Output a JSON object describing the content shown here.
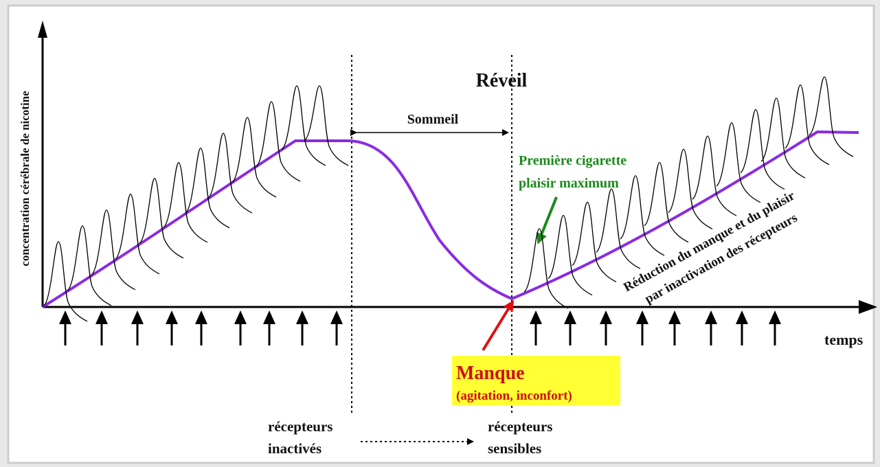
{
  "diagram": {
    "y_axis_label": "concentration cérébrale de nicotine",
    "wake": "Réveil",
    "sleep": "Sommeil",
    "first_cigarette": [
      "Première cigarette",
      "plaisir maximum"
    ],
    "reduction": [
      "Réduction du manque et du plaisir",
      "par inactivation des récepteurs"
    ],
    "x_axis_label": "temps",
    "withdrawal": "Manque",
    "withdrawal_detail": "(agitation, inconfort)",
    "receptors_left": [
      "récepteurs",
      "inactivés"
    ],
    "receptors_right": [
      "récepteurs",
      "sensibles"
    ]
  }
}
